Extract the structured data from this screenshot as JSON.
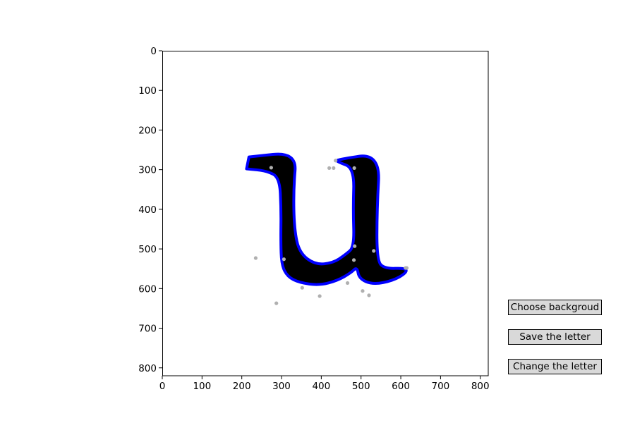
{
  "buttons": {
    "choose_background": "Choose backgroud",
    "save_letter": "Save the letter",
    "change_letter": "Change the letter"
  },
  "colors": {
    "outline": "#0000ff",
    "glyph_fill": "#000000",
    "point_color": "#b0b0b0",
    "button_bg": "#d9d9d9"
  },
  "chart_data": {
    "type": "scatter",
    "xlim": [
      0,
      820
    ],
    "ylim": [
      820,
      0
    ],
    "y_inverted": true,
    "x_ticks": [
      0,
      100,
      200,
      300,
      400,
      500,
      600,
      700,
      800
    ],
    "y_ticks": [
      0,
      100,
      200,
      300,
      400,
      500,
      600,
      700,
      800
    ],
    "grid": false,
    "glyph": "u",
    "outline_series": {
      "points": [
        [
          218,
          268
        ],
        [
          338,
          255
        ],
        [
          330,
          350
        ],
        [
          332,
          450
        ],
        [
          345,
          510
        ],
        [
          385,
          540
        ],
        [
          430,
          535
        ],
        [
          460,
          515
        ],
        [
          483,
          495
        ],
        [
          480,
          400
        ],
        [
          483,
          296
        ],
        [
          440,
          280
        ],
        [
          438,
          275
        ],
        [
          548,
          258
        ],
        [
          540,
          400
        ],
        [
          540,
          530
        ],
        [
          560,
          550
        ],
        [
          612,
          548
        ],
        [
          615,
          560
        ],
        [
          580,
          580
        ],
        [
          530,
          590
        ],
        [
          495,
          575
        ],
        [
          490,
          545
        ],
        [
          475,
          560
        ],
        [
          440,
          580
        ],
        [
          395,
          592
        ],
        [
          345,
          585
        ],
        [
          315,
          570
        ],
        [
          300,
          540
        ],
        [
          298,
          480
        ],
        [
          299,
          400
        ],
        [
          295,
          320
        ],
        [
          263,
          303
        ],
        [
          212,
          298
        ]
      ]
    },
    "scatter_series": {
      "points": [
        [
          274,
          295
        ],
        [
          235,
          523
        ],
        [
          306,
          526
        ],
        [
          352,
          598
        ],
        [
          287,
          637
        ],
        [
          396,
          619
        ],
        [
          420,
          296
        ],
        [
          431,
          296
        ],
        [
          436,
          277
        ],
        [
          466,
          586
        ],
        [
          504,
          606
        ],
        [
          520,
          617
        ],
        [
          532,
          505
        ],
        [
          482,
          528
        ],
        [
          484,
          493
        ],
        [
          483,
          296
        ],
        [
          615,
          548
        ],
        [
          612,
          548
        ]
      ]
    }
  }
}
